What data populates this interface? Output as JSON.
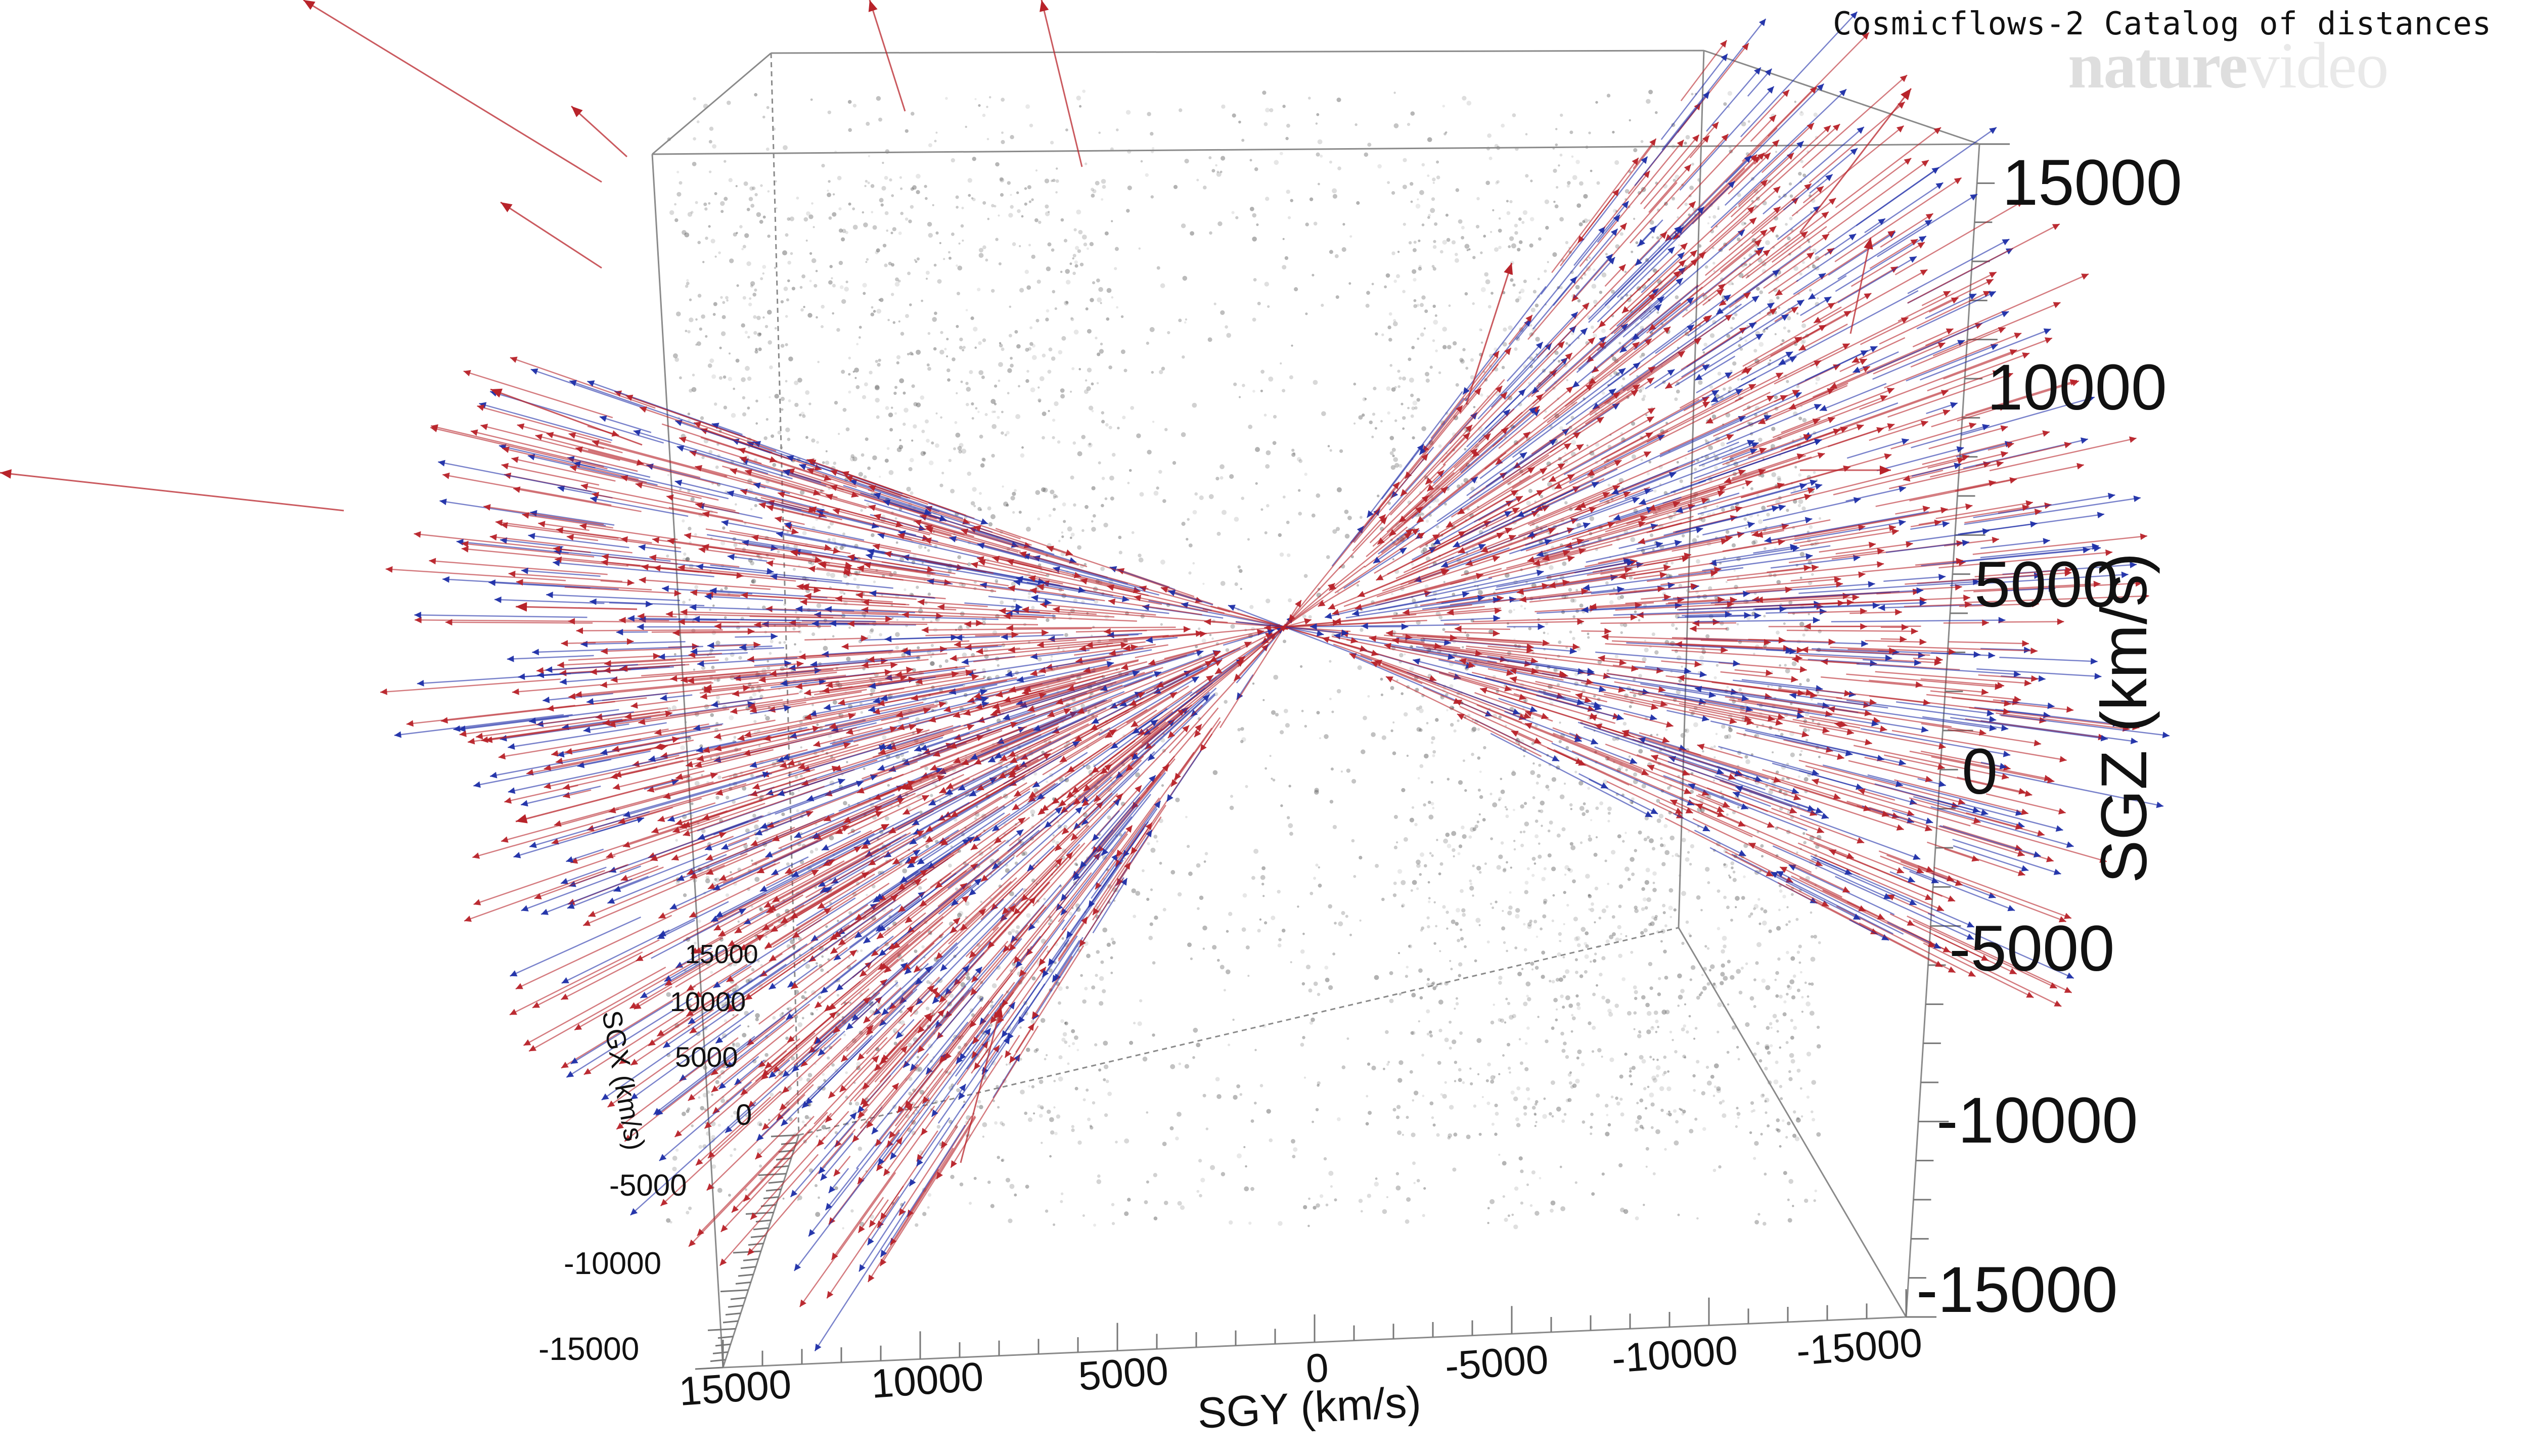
{
  "chart_data": {
    "type": "scatter",
    "title": "Cosmicflows-2 Catalog of distances",
    "watermark": {
      "brand": "nature",
      "suffix": "video"
    },
    "axes": {
      "z": {
        "label": "SGZ (km/s)",
        "ticks": [
          "15000",
          "10000",
          "5000",
          "0",
          "-5000",
          "-10000",
          "-15000"
        ],
        "range": [
          -15000,
          15000
        ]
      },
      "y": {
        "label": "SGY (km/s)",
        "ticks": [
          "15000",
          "10000",
          "5000",
          "0",
          "-5000",
          "-10000",
          "-15000"
        ],
        "range": [
          15000,
          -15000
        ]
      },
      "x": {
        "label": "SGX (km/s)",
        "ticks": [
          "15000",
          "10000",
          "5000",
          "0",
          "-5000",
          "-10000",
          "-15000"
        ],
        "range": [
          15000,
          -15000
        ]
      }
    },
    "series": [
      {
        "role": "background-galaxies",
        "color": "#555555"
      },
      {
        "role": "arrows-outward",
        "color": "#b8232a"
      },
      {
        "role": "arrows-inward",
        "color": "#1f2fa8"
      }
    ],
    "grid": false,
    "legend": "none"
  }
}
